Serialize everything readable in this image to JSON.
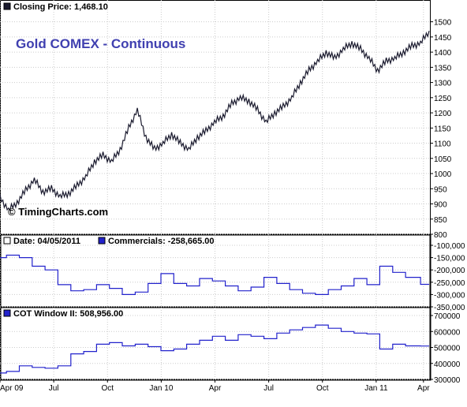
{
  "chart_data": [
    {
      "type": "line",
      "header": "Closing Price: 1,468.10",
      "title": "Gold COMEX - Continuous",
      "watermark": "© TimingCharts.com",
      "ylim": [
        800,
        1525
      ],
      "yticks": [
        "1500",
        "1450",
        "1400",
        "1350",
        "1300",
        "1250",
        "1200",
        "1150",
        "1100",
        "1050",
        "1000",
        "950",
        "900",
        "850",
        "800"
      ],
      "series": [
        {
          "color": "#1a1a2e",
          "x": [
            0,
            0.02,
            0.04,
            0.06,
            0.08,
            0.1,
            0.12,
            0.14,
            0.16,
            0.18,
            0.2,
            0.22,
            0.24,
            0.26,
            0.28,
            0.3,
            0.32,
            0.34,
            0.36,
            0.38,
            0.4,
            0.42,
            0.44,
            0.46,
            0.48,
            0.5,
            0.52,
            0.54,
            0.56,
            0.58,
            0.6,
            0.62,
            0.64,
            0.66,
            0.68,
            0.7,
            0.72,
            0.74,
            0.76,
            0.78,
            0.8,
            0.82,
            0.84,
            0.86,
            0.88,
            0.9,
            0.92,
            0.94,
            0.96,
            0.98,
            1.0
          ],
          "values": [
            920,
            880,
            905,
            945,
            980,
            940,
            950,
            925,
            935,
            960,
            990,
            1040,
            1060,
            1040,
            1080,
            1150,
            1210,
            1120,
            1080,
            1100,
            1130,
            1100,
            1080,
            1120,
            1140,
            1170,
            1190,
            1230,
            1250,
            1240,
            1210,
            1170,
            1200,
            1220,
            1250,
            1300,
            1340,
            1370,
            1400,
            1380,
            1410,
            1430,
            1410,
            1380,
            1340,
            1370,
            1380,
            1400,
            1420,
            1430,
            1470
          ]
        }
      ]
    },
    {
      "type": "line",
      "header_label": "Date: 04/05/2011",
      "header": "Commercials: -258,665.00",
      "ylim": [
        -350000,
        -100000
      ],
      "yticks": [
        "-100,000",
        "-150,000",
        "-200,000",
        "-250,000",
        "-300,000",
        "-350,000"
      ],
      "series": [
        {
          "name": "Commercials",
          "color": "#2222cc",
          "x": [
            0,
            0.03,
            0.06,
            0.09,
            0.12,
            0.15,
            0.18,
            0.21,
            0.24,
            0.27,
            0.3,
            0.33,
            0.36,
            0.39,
            0.42,
            0.45,
            0.48,
            0.51,
            0.54,
            0.57,
            0.6,
            0.63,
            0.66,
            0.69,
            0.72,
            0.75,
            0.78,
            0.81,
            0.84,
            0.87,
            0.9,
            0.93,
            0.96,
            1.0
          ],
          "values": [
            -150000,
            -140000,
            -150000,
            -185000,
            -200000,
            -260000,
            -285000,
            -280000,
            -260000,
            -275000,
            -300000,
            -290000,
            -255000,
            -215000,
            -255000,
            -265000,
            -235000,
            -245000,
            -265000,
            -285000,
            -270000,
            -230000,
            -255000,
            -280000,
            -295000,
            -300000,
            -280000,
            -265000,
            -235000,
            -260000,
            -185000,
            -210000,
            -230000,
            -258665
          ]
        }
      ]
    },
    {
      "type": "line",
      "header": "COT Window II: 508,956.00",
      "ylim": [
        300000,
        700000
      ],
      "yticks": [
        "700000",
        "600000",
        "500000",
        "400000",
        "300000"
      ],
      "xticks": [
        "Apr 09",
        "Jul",
        "Oct",
        "Jan 10",
        "Apr",
        "Jul",
        "Oct",
        "Jan 11",
        "Apr"
      ],
      "series": [
        {
          "name": "COT Window II",
          "color": "#2222cc",
          "x": [
            0,
            0.03,
            0.06,
            0.09,
            0.12,
            0.15,
            0.18,
            0.21,
            0.24,
            0.27,
            0.3,
            0.33,
            0.36,
            0.39,
            0.42,
            0.45,
            0.48,
            0.51,
            0.54,
            0.57,
            0.6,
            0.63,
            0.66,
            0.69,
            0.72,
            0.75,
            0.78,
            0.81,
            0.84,
            0.87,
            0.9,
            0.93,
            0.96,
            1.0
          ],
          "values": [
            340000,
            350000,
            385000,
            375000,
            370000,
            385000,
            460000,
            475000,
            520000,
            530000,
            510000,
            520000,
            505000,
            480000,
            490000,
            520000,
            545000,
            570000,
            545000,
            580000,
            570000,
            555000,
            590000,
            610000,
            625000,
            640000,
            620000,
            600000,
            590000,
            585000,
            490000,
            520000,
            510000,
            508956
          ]
        }
      ]
    }
  ]
}
